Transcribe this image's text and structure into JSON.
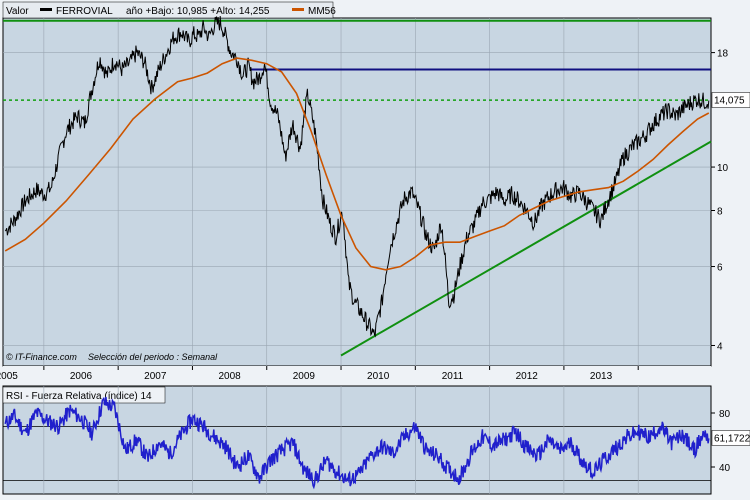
{
  "header": {
    "value_label": "Valor",
    "security": "FERROVIAL",
    "range_text": "año +Bajo: 10,985 +Alto: 14,255",
    "ma_label": "MM56",
    "colors": {
      "price": "#000000",
      "ma": "#cc5500",
      "header_bg": "#e6ebf0"
    }
  },
  "footer": {
    "source": "© IT-Finance.com",
    "period_text": "Selección del periodo : Semanal"
  },
  "rsi_panel": {
    "title": "RSI - Fuerza Relativa (índice) 14",
    "last_value_label": "61,1722"
  },
  "chart_data": [
    {
      "type": "line",
      "name": "price",
      "scale": "log",
      "ylim": [
        3.6,
        21.5
      ],
      "x_range": [
        2004.45,
        2013.98
      ],
      "yticks": [
        4,
        6,
        8,
        10,
        18
      ],
      "ytick_labels": [
        "4",
        "6",
        "8",
        "10",
        "18"
      ],
      "xtick_labels": [
        "2005",
        "2006",
        "2007",
        "2008",
        "2009",
        "2010",
        "2011",
        "2012",
        "2013"
      ],
      "last_value_label": "14,075",
      "grid": true,
      "series": [
        {
          "name": "FERROVIAL",
          "color": "#000000",
          "x": [
            2004.48,
            2004.6,
            2004.75,
            2004.9,
            2005.0,
            2005.1,
            2005.2,
            2005.3,
            2005.45,
            2005.55,
            2005.65,
            2005.75,
            2005.85,
            2005.95,
            2006.05,
            2006.15,
            2006.25,
            2006.35,
            2006.45,
            2006.55,
            2006.65,
            2006.75,
            2006.85,
            2006.95,
            2007.02,
            2007.08,
            2007.15,
            2007.22,
            2007.3,
            2007.38,
            2007.45,
            2007.52,
            2007.6,
            2007.68,
            2007.75,
            2007.82,
            2007.9,
            2007.97,
            2008.05,
            2008.15,
            2008.25,
            2008.35,
            2008.45,
            2008.55,
            2008.65,
            2008.75,
            2008.85,
            2008.93,
            2009.02,
            2009.1,
            2009.18,
            2009.25,
            2009.35,
            2009.45,
            2009.55,
            2009.65,
            2009.75,
            2009.85,
            2009.95,
            2010.05,
            2010.15,
            2010.25,
            2010.35,
            2010.45,
            2010.52,
            2010.6,
            2010.7,
            2010.8,
            2010.9,
            2011.0,
            2011.1,
            2011.2,
            2011.3,
            2011.4,
            2011.5,
            2011.6,
            2011.7,
            2011.8,
            2011.9,
            2012.0,
            2012.1,
            2012.2,
            2012.3,
            2012.4,
            2012.5,
            2012.6,
            2012.7,
            2012.8,
            2012.9,
            2013.0,
            2013.1,
            2013.2,
            2013.3,
            2013.4,
            2013.5,
            2013.6,
            2013.7,
            2013.8,
            2013.9,
            2013.95
          ],
          "y": [
            7.2,
            7.6,
            8.4,
            8.9,
            8.7,
            9.0,
            10.5,
            12.0,
            13.0,
            12.5,
            15.0,
            17.5,
            16.0,
            17.3,
            16.5,
            17.0,
            18.0,
            17.2,
            15.0,
            16.5,
            18.0,
            19.5,
            20.0,
            19.0,
            19.8,
            19.5,
            20.5,
            19.5,
            20.8,
            21.0,
            19.5,
            18.0,
            17.5,
            16.0,
            16.8,
            15.5,
            15.8,
            17.0,
            14.0,
            13.0,
            10.5,
            12.5,
            11.0,
            14.5,
            12.0,
            8.5,
            7.5,
            7.0,
            8.0,
            5.5,
            5.0,
            4.8,
            4.5,
            4.2,
            5.0,
            6.5,
            7.5,
            8.5,
            8.8,
            8.0,
            7.0,
            6.5,
            7.5,
            5.0,
            5.2,
            6.0,
            7.0,
            7.5,
            8.3,
            8.5,
            8.8,
            8.4,
            8.7,
            8.4,
            8.0,
            7.5,
            8.2,
            8.6,
            8.9,
            9.0,
            8.6,
            8.8,
            8.4,
            8.0,
            7.6,
            8.5,
            9.3,
            10.5,
            11.0,
            11.4,
            11.8,
            12.5,
            13.0,
            13.4,
            13.0,
            13.5,
            13.9,
            14.2,
            14.0,
            14.075
          ]
        },
        {
          "name": "MM56",
          "color": "#cc5500",
          "x": [
            2004.48,
            2004.75,
            2005.0,
            2005.3,
            2005.6,
            2005.9,
            2006.2,
            2006.5,
            2006.8,
            2007.0,
            2007.2,
            2007.4,
            2007.6,
            2007.8,
            2008.0,
            2008.2,
            2008.4,
            2008.6,
            2008.8,
            2009.0,
            2009.2,
            2009.4,
            2009.6,
            2009.8,
            2010.0,
            2010.2,
            2010.4,
            2010.6,
            2010.8,
            2011.0,
            2011.2,
            2011.4,
            2011.6,
            2011.8,
            2012.0,
            2012.2,
            2012.4,
            2012.6,
            2012.8,
            2013.0,
            2013.2,
            2013.4,
            2013.6,
            2013.8,
            2013.95
          ],
          "y": [
            6.5,
            6.9,
            7.5,
            8.4,
            9.6,
            11.0,
            12.8,
            14.2,
            15.5,
            15.8,
            16.2,
            17.0,
            17.5,
            17.3,
            17.0,
            16.3,
            14.6,
            12.0,
            9.6,
            7.8,
            6.6,
            6.0,
            5.9,
            6.0,
            6.3,
            6.7,
            6.8,
            6.8,
            7.0,
            7.2,
            7.4,
            7.8,
            8.1,
            8.4,
            8.6,
            8.8,
            8.9,
            9.0,
            9.3,
            9.8,
            10.4,
            11.2,
            12.0,
            12.8,
            13.2
          ]
        }
      ],
      "reference_lines": [
        {
          "name": "top-horizontal",
          "color": "#109010",
          "y": 21.2,
          "style": "solid"
        },
        {
          "name": "resistance-horizontal",
          "color": "#101080",
          "y": 16.5,
          "x_from": 2007.78,
          "style": "solid"
        },
        {
          "name": "support-dotted",
          "color": "#10a010",
          "y": 14.1,
          "style": "dotted"
        },
        {
          "name": "trend-line",
          "color": "#109010",
          "x_from": 2009.0,
          "y_from": 3.8,
          "x_to": 2013.98,
          "y_to": 11.4,
          "style": "solid"
        }
      ]
    },
    {
      "type": "line",
      "name": "rsi",
      "ylim": [
        20,
        100
      ],
      "yticks": [
        40,
        80
      ],
      "ytick_labels": [
        "40",
        "80"
      ],
      "reference_levels": [
        70,
        30
      ],
      "series": [
        {
          "name": "RSI 14",
          "color": "#2020cc",
          "x": [
            2004.48,
            2004.6,
            2004.75,
            2004.9,
            2005.05,
            2005.2,
            2005.35,
            2005.5,
            2005.65,
            2005.8,
            2005.95,
            2006.1,
            2006.25,
            2006.4,
            2006.55,
            2006.7,
            2006.85,
            2007.0,
            2007.15,
            2007.3,
            2007.45,
            2007.6,
            2007.75,
            2007.9,
            2008.05,
            2008.2,
            2008.35,
            2008.5,
            2008.65,
            2008.8,
            2008.95,
            2009.1,
            2009.25,
            2009.4,
            2009.55,
            2009.7,
            2009.85,
            2010.0,
            2010.15,
            2010.3,
            2010.45,
            2010.6,
            2010.75,
            2010.9,
            2011.05,
            2011.2,
            2011.35,
            2011.5,
            2011.65,
            2011.8,
            2011.95,
            2012.1,
            2012.25,
            2012.4,
            2012.55,
            2012.7,
            2012.85,
            2013.0,
            2013.15,
            2013.3,
            2013.45,
            2013.6,
            2013.75,
            2013.9,
            2013.95
          ],
          "y": [
            72,
            78,
            65,
            80,
            74,
            70,
            82,
            76,
            65,
            88,
            84,
            52,
            60,
            46,
            58,
            50,
            64,
            76,
            70,
            62,
            55,
            40,
            48,
            32,
            45,
            52,
            58,
            38,
            30,
            45,
            36,
            30,
            35,
            48,
            55,
            50,
            62,
            70,
            52,
            48,
            38,
            32,
            50,
            62,
            56,
            60,
            66,
            54,
            48,
            60,
            52,
            58,
            44,
            36,
            46,
            54,
            62,
            66,
            62,
            70,
            58,
            64,
            52,
            66,
            61.17
          ]
        }
      ]
    }
  ]
}
